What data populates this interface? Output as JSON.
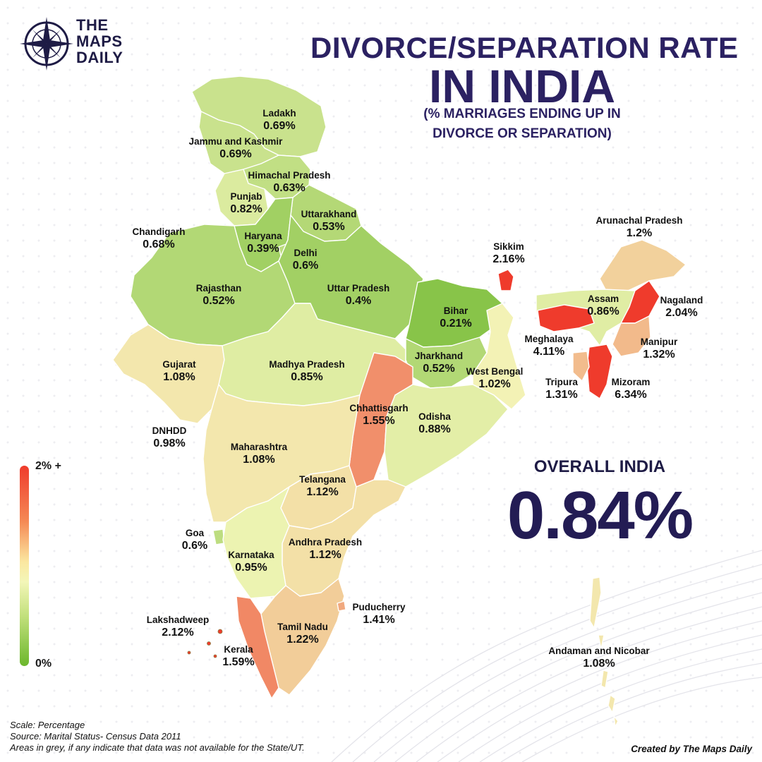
{
  "brand": {
    "line1": "THE",
    "line2": "MAPS",
    "line3": "DAILY"
  },
  "title": {
    "line1": "DIVORCE/SEPARATION RATE",
    "line2": "IN INDIA",
    "subtitle_line1": "(% MARRIAGES ENDING UP IN",
    "subtitle_line2": "DIVORCE OR SEPARATION)"
  },
  "regions": [
    {
      "name": "Ladakh",
      "value": "0.69%",
      "rate": 0.69
    },
    {
      "name": "Jammu and Kashmir",
      "value": "0.69%",
      "rate": 0.69
    },
    {
      "name": "Himachal Pradesh",
      "value": "0.63%",
      "rate": 0.63
    },
    {
      "name": "Punjab",
      "value": "0.82%",
      "rate": 0.82
    },
    {
      "name": "Uttarakhand",
      "value": "0.53%",
      "rate": 0.53
    },
    {
      "name": "Chandigarh",
      "value": "0.68%",
      "rate": 0.68
    },
    {
      "name": "Haryana",
      "value": "0.39%",
      "rate": 0.39
    },
    {
      "name": "Delhi",
      "value": "0.6%",
      "rate": 0.6
    },
    {
      "name": "Rajasthan",
      "value": "0.52%",
      "rate": 0.52
    },
    {
      "name": "Uttar Pradesh",
      "value": "0.4%",
      "rate": 0.4
    },
    {
      "name": "Bihar",
      "value": "0.21%",
      "rate": 0.21
    },
    {
      "name": "Sikkim",
      "value": "2.16%",
      "rate": 2.16
    },
    {
      "name": "Arunachal Pradesh",
      "value": "1.2%",
      "rate": 1.2
    },
    {
      "name": "Assam",
      "value": "0.86%",
      "rate": 0.86
    },
    {
      "name": "Nagaland",
      "value": "2.04%",
      "rate": 2.04
    },
    {
      "name": "Meghalaya",
      "value": "4.11%",
      "rate": 4.11
    },
    {
      "name": "Manipur",
      "value": "1.32%",
      "rate": 1.32
    },
    {
      "name": "Tripura",
      "value": "1.31%",
      "rate": 1.31
    },
    {
      "name": "Mizoram",
      "value": "6.34%",
      "rate": 6.34
    },
    {
      "name": "Gujarat",
      "value": "1.08%",
      "rate": 1.08
    },
    {
      "name": "Madhya Pradesh",
      "value": "0.85%",
      "rate": 0.85
    },
    {
      "name": "Jharkhand",
      "value": "0.52%",
      "rate": 0.52
    },
    {
      "name": "West Bengal",
      "value": "1.02%",
      "rate": 1.02
    },
    {
      "name": "Chhattisgarh",
      "value": "1.55%",
      "rate": 1.55
    },
    {
      "name": "Odisha",
      "value": "0.88%",
      "rate": 0.88
    },
    {
      "name": "DNHDD",
      "value": "0.98%",
      "rate": 0.98
    },
    {
      "name": "Maharashtra",
      "value": "1.08%",
      "rate": 1.08
    },
    {
      "name": "Telangana",
      "value": "1.12%",
      "rate": 1.12
    },
    {
      "name": "Goa",
      "value": "0.6%",
      "rate": 0.6
    },
    {
      "name": "Andhra Pradesh",
      "value": "1.12%",
      "rate": 1.12
    },
    {
      "name": "Karnataka",
      "value": "0.95%",
      "rate": 0.95
    },
    {
      "name": "Puducherry",
      "value": "1.41%",
      "rate": 1.41
    },
    {
      "name": "Lakshadweep",
      "value": "2.12%",
      "rate": 2.12
    },
    {
      "name": "Tamil Nadu",
      "value": "1.22%",
      "rate": 1.22
    },
    {
      "name": "Kerala",
      "value": "1.59%",
      "rate": 1.59
    },
    {
      "name": "Andaman and Nicobar",
      "value": "1.08%",
      "rate": 1.08
    }
  ],
  "overall": {
    "label": "OVERALL INDIA",
    "value": "0.84%"
  },
  "legend": {
    "max_label": "2% +",
    "min_label": "0%",
    "min": 0,
    "max": 2
  },
  "footer": {
    "scale": "Scale: Percentage",
    "source": "Source: Marital Status- Census Data 2011",
    "note": "Areas in grey, if any indicate that data was not available for the State/UT.",
    "credit": "Created by The Maps Daily"
  },
  "colors": {
    "title": "#2b2162",
    "low": "#6cb72c",
    "mid": "#f3f6b8",
    "high": "#ef3b2c"
  }
}
